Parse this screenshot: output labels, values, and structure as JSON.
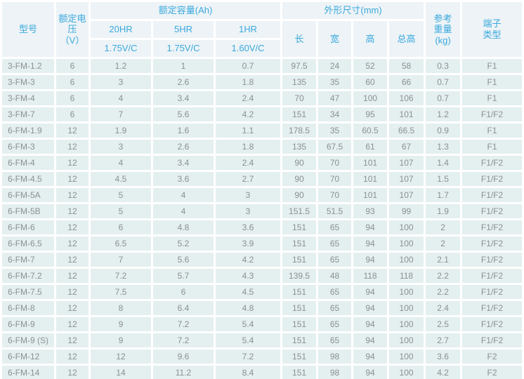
{
  "table": {
    "header": {
      "model": "型号",
      "voltage": [
        "额定电压",
        "（V）"
      ],
      "capacity_group": "额定容量(Ah)",
      "capacity_cols": [
        "20HR",
        "5HR",
        "1HR"
      ],
      "capacity_sub": [
        "1.75V/C",
        "1.75V/C",
        "1.60V/C"
      ],
      "dimension_group": "外形尺寸(mm)",
      "dimension_cols": [
        "长",
        "宽",
        "高",
        "总高"
      ],
      "weight": [
        "参考",
        "重量",
        "(kg)"
      ],
      "terminal": [
        "端子",
        "类型"
      ]
    },
    "column_keys": [
      "model",
      "voltage",
      "capacity-20hr",
      "capacity-5hr",
      "capacity-1hr",
      "length",
      "width",
      "height",
      "total-height",
      "weight",
      "terminal"
    ],
    "rows": [
      [
        "3-FM-1.2",
        "6",
        "1.2",
        "1",
        "0.7",
        "97.5",
        "24",
        "52",
        "58",
        "0.3",
        "F1"
      ],
      [
        "3-FM-3",
        "6",
        "3",
        "2.6",
        "1.8",
        "135",
        "35",
        "60",
        "66",
        "0.7",
        "F1"
      ],
      [
        "3-FM-4",
        "6",
        "4",
        "3.4",
        "2.4",
        "70",
        "47",
        "100",
        "106",
        "0.7",
        "F1"
      ],
      [
        "3-FM-7",
        "6",
        "7",
        "5.6",
        "4.2",
        "151",
        "34",
        "95",
        "101",
        "1.2",
        "F1/F2"
      ],
      [
        "6-FM-1.9",
        "12",
        "1.9",
        "1.6",
        "1.1",
        "178.5",
        "35",
        "60.5",
        "66.5",
        "0.9",
        "F1"
      ],
      [
        "6-FM-3",
        "12",
        "3",
        "2.6",
        "1.8",
        "135",
        "67.5",
        "61",
        "67",
        "1.3",
        "F1"
      ],
      [
        "6-FM-4",
        "12",
        "4",
        "3.4",
        "2.4",
        "90",
        "70",
        "101",
        "107",
        "1.4",
        "F1/F2"
      ],
      [
        "6-FM-4.5",
        "12",
        "4.5",
        "3.6",
        "2.7",
        "90",
        "70",
        "101",
        "107",
        "1.5",
        "F1/F2"
      ],
      [
        "6-FM-5A",
        "12",
        "5",
        "4",
        "3",
        "90",
        "70",
        "101",
        "107",
        "1.7",
        "F1/F2"
      ],
      [
        "6-FM-5B",
        "12",
        "5",
        "4",
        "3",
        "151.5",
        "51.5",
        "93",
        "99",
        "1.9",
        "F1/F2"
      ],
      [
        "6-FM-6",
        "12",
        "6",
        "4.8",
        "3.6",
        "151",
        "65",
        "94",
        "100",
        "2",
        "F1/F2"
      ],
      [
        "6-FM-6.5",
        "12",
        "6.5",
        "5.2",
        "3.9",
        "151",
        "65",
        "94",
        "100",
        "2",
        "F1/F2"
      ],
      [
        "6-FM-7",
        "12",
        "7",
        "5.6",
        "4.2",
        "151",
        "65",
        "94",
        "100",
        "2.1",
        "F1/F2"
      ],
      [
        "6-FM-7.2",
        "12",
        "7.2",
        "5.7",
        "4.3",
        "139.5",
        "48",
        "118",
        "118",
        "2.2",
        "F1/F2"
      ],
      [
        "6-FM-7.5",
        "12",
        "7.5",
        "6",
        "4.5",
        "151",
        "65",
        "94",
        "100",
        "2.2",
        "F1/F2"
      ],
      [
        "6-FM-8",
        "12",
        "8",
        "6.4",
        "4.8",
        "151",
        "65",
        "94",
        "100",
        "2.4",
        "F1/F2"
      ],
      [
        "6-FM-9",
        "12",
        "9",
        "7.2",
        "5.4",
        "151",
        "65",
        "94",
        "100",
        "2.5",
        "F1/F2"
      ],
      [
        "6-FM-9 (S)",
        "12",
        "9",
        "7.2",
        "5.4",
        "151",
        "65",
        "94",
        "100",
        "2.7",
        "F1/F2"
      ],
      [
        "6-FM-12",
        "12",
        "12",
        "9.6",
        "7.2",
        "151",
        "98",
        "94",
        "100",
        "3.6",
        "F2"
      ],
      [
        "6-FM-14",
        "12",
        "14",
        "11.2",
        "8.4",
        "151",
        "98",
        "94",
        "100",
        "4.2",
        "F2"
      ]
    ],
    "colors": {
      "header_text": "#3aa9de",
      "header_background": "#edf3f6",
      "cell_text": "#8b9094",
      "cell_background": "#e4efef",
      "gap": "#ffffff"
    }
  }
}
